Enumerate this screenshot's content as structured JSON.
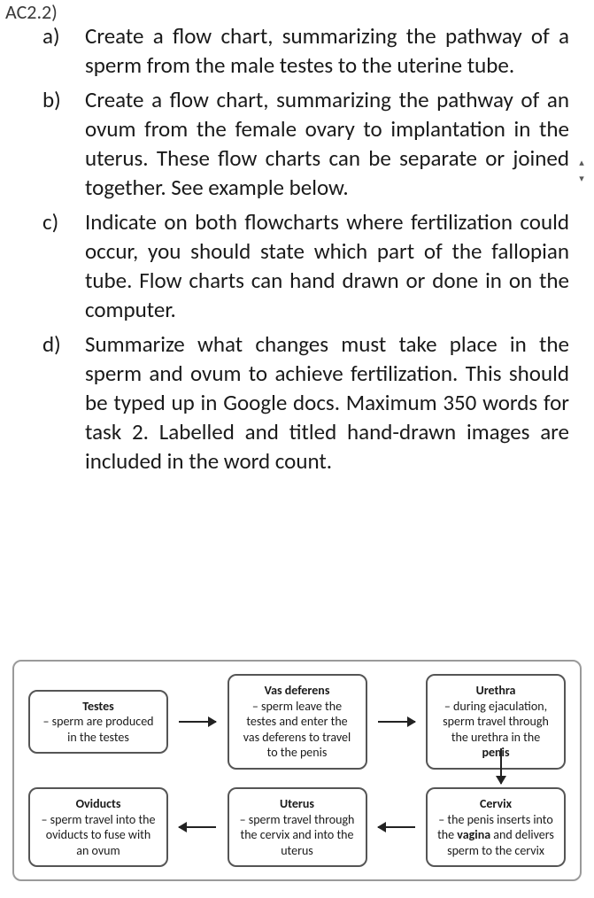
{
  "headerRef": "AC2.2)",
  "listItems": [
    {
      "marker": "a)",
      "text": "Create a flow chart, summarizing the pathway of a sperm from the male testes to the uterine tube."
    },
    {
      "marker": "b)",
      "text": "Create a flow chart, summarizing the pathway of an ovum from the female ovary to implantation in the uterus. These flow charts can be separate or joined together. See example below."
    },
    {
      "marker": "c)",
      "text": "Indicate on both flowcharts where fertilization could occur, you should state which part of the fallopian tube.  Flow charts can hand drawn or done in on the computer."
    },
    {
      "marker": "d)",
      "text": "Summarize what changes must take place in the sperm and ovum to achieve fertilization.  This should be typed up in Google docs.  Maximum 350 words for task 2. Labelled and titled hand-drawn images are included in the word count."
    }
  ],
  "flowchart": {
    "type": "flowchart",
    "border_color": "#9a9a9a",
    "node_border_color": "#555555",
    "node_border_radius": 10,
    "node_font_size": 14,
    "arrow_color": "#222222",
    "nodes": [
      {
        "id": "testes",
        "title": "Testes",
        "desc": "– sperm are produced in the testes",
        "row": 0,
        "col": 0
      },
      {
        "id": "vas",
        "title": "Vas deferens",
        "desc": "– sperm leave the testes and enter the vas deferens to travel to the penis",
        "row": 0,
        "col": 1
      },
      {
        "id": "urethra",
        "title": "Urethra",
        "desc_html": "– during ejaculation, sperm travel through the urethra in the <b>penis</b>",
        "row": 0,
        "col": 2
      },
      {
        "id": "oviducts",
        "title": "Oviducts",
        "desc": "– sperm travel into the oviducts to fuse with an ovum",
        "row": 1,
        "col": 0
      },
      {
        "id": "uterus",
        "title": "Uterus",
        "desc": "– sperm travel through the cervix and into the uterus",
        "row": 1,
        "col": 1
      },
      {
        "id": "cervix",
        "title": "Cervix",
        "desc_html": "– the penis inserts into the <b>vagina</b> and delivers sperm to the cervix",
        "row": 1,
        "col": 2
      }
    ],
    "edges": [
      {
        "from": "testes",
        "to": "vas",
        "dir": "right"
      },
      {
        "from": "vas",
        "to": "urethra",
        "dir": "right"
      },
      {
        "from": "urethra",
        "to": "cervix",
        "dir": "down"
      },
      {
        "from": "cervix",
        "to": "uterus",
        "dir": "left"
      },
      {
        "from": "uterus",
        "to": "oviducts",
        "dir": "left"
      }
    ]
  },
  "navWidget": {
    "up": "▴",
    "down": "▾"
  }
}
